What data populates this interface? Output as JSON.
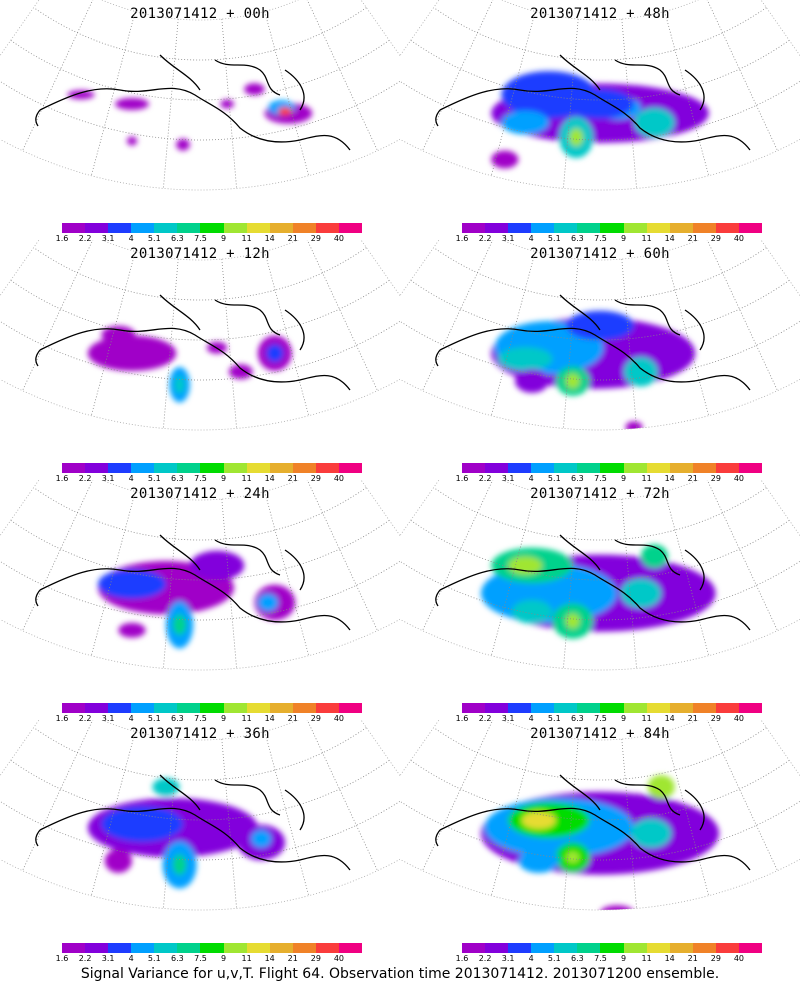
{
  "caption": "Signal Variance for u,v,T. Flight 64. Observation time 2013071412. 2013071200 ensemble.",
  "colorbar": {
    "colors": [
      "#a000c8",
      "#8200dc",
      "#1e3cff",
      "#00a0ff",
      "#00c8c8",
      "#00d28c",
      "#00dc00",
      "#a0e632",
      "#e6dc32",
      "#e6af2d",
      "#f08228",
      "#fa3c3c",
      "#f00082"
    ],
    "tick_labels": [
      "1.6",
      "2.2",
      "3.1",
      "4",
      "5.1",
      "6.3",
      "7.5",
      "9",
      "11",
      "14",
      "21",
      "29",
      "40"
    ]
  },
  "panels": [
    {
      "title": "2013071412 + 00h",
      "blobs": [
        [
          0.76,
          0.45,
          0.07,
          0.035,
          "#a000c8"
        ],
        [
          0.74,
          0.42,
          0.04,
          0.025,
          "#00a0ff"
        ],
        [
          0.75,
          0.44,
          0.02,
          0.015,
          "#fa3c3c"
        ],
        [
          0.3,
          0.4,
          0.05,
          0.02,
          "#a000c8"
        ],
        [
          0.45,
          0.62,
          0.02,
          0.02,
          "#a000c8"
        ],
        [
          0.15,
          0.35,
          0.04,
          0.015,
          "#a000c8"
        ],
        [
          0.3,
          0.6,
          0.015,
          0.015,
          "#a000c8"
        ],
        [
          0.58,
          0.4,
          0.02,
          0.015,
          "#a000c8"
        ],
        [
          0.66,
          0.32,
          0.03,
          0.02,
          "#a000c8"
        ]
      ]
    },
    {
      "title": "2013071412 + 48h",
      "blobs": [
        [
          0.5,
          0.45,
          0.32,
          0.1,
          "#8200dc"
        ],
        [
          0.35,
          0.35,
          0.14,
          0.08,
          "#1e3cff"
        ],
        [
          0.43,
          0.58,
          0.05,
          0.07,
          "#00c8c8"
        ],
        [
          0.43,
          0.58,
          0.02,
          0.03,
          "#a0e632"
        ],
        [
          0.66,
          0.5,
          0.06,
          0.05,
          "#00c8c8"
        ],
        [
          0.28,
          0.5,
          0.07,
          0.04,
          "#00a0ff"
        ],
        [
          0.55,
          0.42,
          0.07,
          0.04,
          "#00a0ff"
        ],
        [
          0.22,
          0.7,
          0.04,
          0.03,
          "#a000c8"
        ],
        [
          0.66,
          0.95,
          0.03,
          0.01,
          "#a000c8"
        ],
        [
          0.5,
          0.4,
          0.1,
          0.05,
          "#1e3cff"
        ]
      ]
    },
    {
      "title": "2013071412 + 12h",
      "blobs": [
        [
          0.3,
          0.45,
          0.13,
          0.06,
          "#a000c8"
        ],
        [
          0.44,
          0.62,
          0.03,
          0.06,
          "#00a0ff"
        ],
        [
          0.44,
          0.62,
          0.015,
          0.03,
          "#00c8c8"
        ],
        [
          0.72,
          0.45,
          0.05,
          0.06,
          "#a000c8"
        ],
        [
          0.72,
          0.45,
          0.025,
          0.03,
          "#1e3cff"
        ],
        [
          0.62,
          0.55,
          0.035,
          0.025,
          "#a000c8"
        ],
        [
          0.26,
          0.35,
          0.05,
          0.03,
          "#a000c8"
        ],
        [
          0.55,
          0.42,
          0.03,
          0.02,
          "#a000c8"
        ]
      ]
    },
    {
      "title": "2013071412 + 60h",
      "blobs": [
        [
          0.48,
          0.45,
          0.3,
          0.12,
          "#8200dc"
        ],
        [
          0.35,
          0.42,
          0.16,
          0.09,
          "#00a0ff"
        ],
        [
          0.28,
          0.48,
          0.08,
          0.04,
          "#00c8c8"
        ],
        [
          0.42,
          0.6,
          0.05,
          0.05,
          "#00d28c"
        ],
        [
          0.42,
          0.6,
          0.02,
          0.025,
          "#a0e632"
        ],
        [
          0.62,
          0.55,
          0.05,
          0.05,
          "#00c8c8"
        ],
        [
          0.5,
          0.3,
          0.1,
          0.05,
          "#1e3cff"
        ],
        [
          0.3,
          0.6,
          0.05,
          0.04,
          "#8200dc"
        ],
        [
          0.6,
          0.85,
          0.025,
          0.02,
          "#a000c8"
        ]
      ]
    },
    {
      "title": "2013071412 + 24h",
      "blobs": [
        [
          0.4,
          0.42,
          0.2,
          0.09,
          "#a000c8"
        ],
        [
          0.3,
          0.4,
          0.1,
          0.05,
          "#1e3cff"
        ],
        [
          0.44,
          0.62,
          0.04,
          0.08,
          "#00a0ff"
        ],
        [
          0.44,
          0.62,
          0.02,
          0.035,
          "#00d28c"
        ],
        [
          0.72,
          0.5,
          0.06,
          0.06,
          "#a000c8"
        ],
        [
          0.7,
          0.5,
          0.03,
          0.03,
          "#00a0ff"
        ],
        [
          0.3,
          0.65,
          0.04,
          0.025,
          "#a000c8"
        ],
        [
          0.55,
          0.3,
          0.08,
          0.05,
          "#8200dc"
        ]
      ]
    },
    {
      "title": "2013071412 + 72h",
      "blobs": [
        [
          0.5,
          0.45,
          0.34,
          0.13,
          "#8200dc"
        ],
        [
          0.35,
          0.45,
          0.2,
          0.1,
          "#00a0ff"
        ],
        [
          0.3,
          0.3,
          0.12,
          0.06,
          "#00d28c"
        ],
        [
          0.28,
          0.3,
          0.05,
          0.03,
          "#a0e632"
        ],
        [
          0.42,
          0.6,
          0.06,
          0.06,
          "#00d28c"
        ],
        [
          0.42,
          0.6,
          0.02,
          0.025,
          "#a0e632"
        ],
        [
          0.62,
          0.45,
          0.06,
          0.05,
          "#00c8c8"
        ],
        [
          0.66,
          0.25,
          0.04,
          0.04,
          "#00d28c"
        ],
        [
          0.3,
          0.55,
          0.06,
          0.04,
          "#00c8c8"
        ],
        [
          0.6,
          0.95,
          0.04,
          0.012,
          "#a000c8"
        ]
      ]
    },
    {
      "title": "2013071412 + 36h",
      "blobs": [
        [
          0.42,
          0.42,
          0.25,
          0.1,
          "#8200dc"
        ],
        [
          0.33,
          0.4,
          0.12,
          0.06,
          "#1e3cff"
        ],
        [
          0.44,
          0.62,
          0.05,
          0.08,
          "#00a0ff"
        ],
        [
          0.44,
          0.62,
          0.02,
          0.035,
          "#00d28c"
        ],
        [
          0.68,
          0.5,
          0.07,
          0.06,
          "#8200dc"
        ],
        [
          0.68,
          0.48,
          0.03,
          0.03,
          "#00a0ff"
        ],
        [
          0.26,
          0.6,
          0.04,
          0.04,
          "#a000c8"
        ],
        [
          0.4,
          0.2,
          0.04,
          0.03,
          "#00c8c8"
        ]
      ]
    },
    {
      "title": "2013071412 + 84h",
      "blobs": [
        [
          0.5,
          0.45,
          0.35,
          0.14,
          "#8200dc"
        ],
        [
          0.38,
          0.42,
          0.22,
          0.1,
          "#00a0ff"
        ],
        [
          0.35,
          0.38,
          0.12,
          0.06,
          "#00dc00"
        ],
        [
          0.32,
          0.38,
          0.05,
          0.03,
          "#e6dc32"
        ],
        [
          0.42,
          0.58,
          0.05,
          0.05,
          "#00dc00"
        ],
        [
          0.42,
          0.58,
          0.02,
          0.02,
          "#a0e632"
        ],
        [
          0.65,
          0.45,
          0.06,
          0.05,
          "#00c8c8"
        ],
        [
          0.68,
          0.2,
          0.04,
          0.04,
          "#a0e632"
        ],
        [
          0.32,
          0.6,
          0.06,
          0.04,
          "#00a0ff"
        ],
        [
          0.55,
          0.88,
          0.05,
          0.025,
          "#a000c8"
        ]
      ]
    }
  ]
}
